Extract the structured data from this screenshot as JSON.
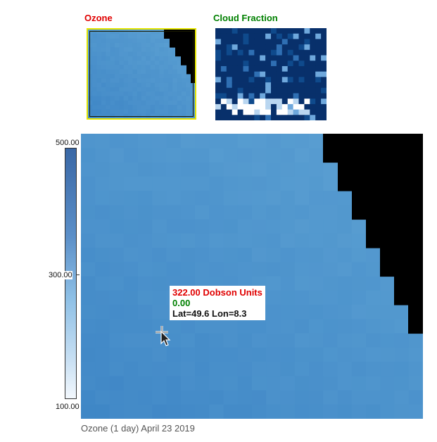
{
  "thumbnails": {
    "ozone_title": "Ozone",
    "cloud_title": "Cloud Fraction"
  },
  "colors": {
    "ozone_title": "#e00000",
    "cloud_title": "#008000",
    "selection": "#e6e600",
    "nodata": "#000000"
  },
  "colorbar": {
    "max_label": "500.00",
    "mid_label": "300.00",
    "min_label": "100.00"
  },
  "tooltip": {
    "value": "322.00 Dobson Units",
    "cloud": "0.00",
    "location": "Lat=49.6 Lon=8.3"
  },
  "caption": "Ozone (1 day) April 23 2019"
}
